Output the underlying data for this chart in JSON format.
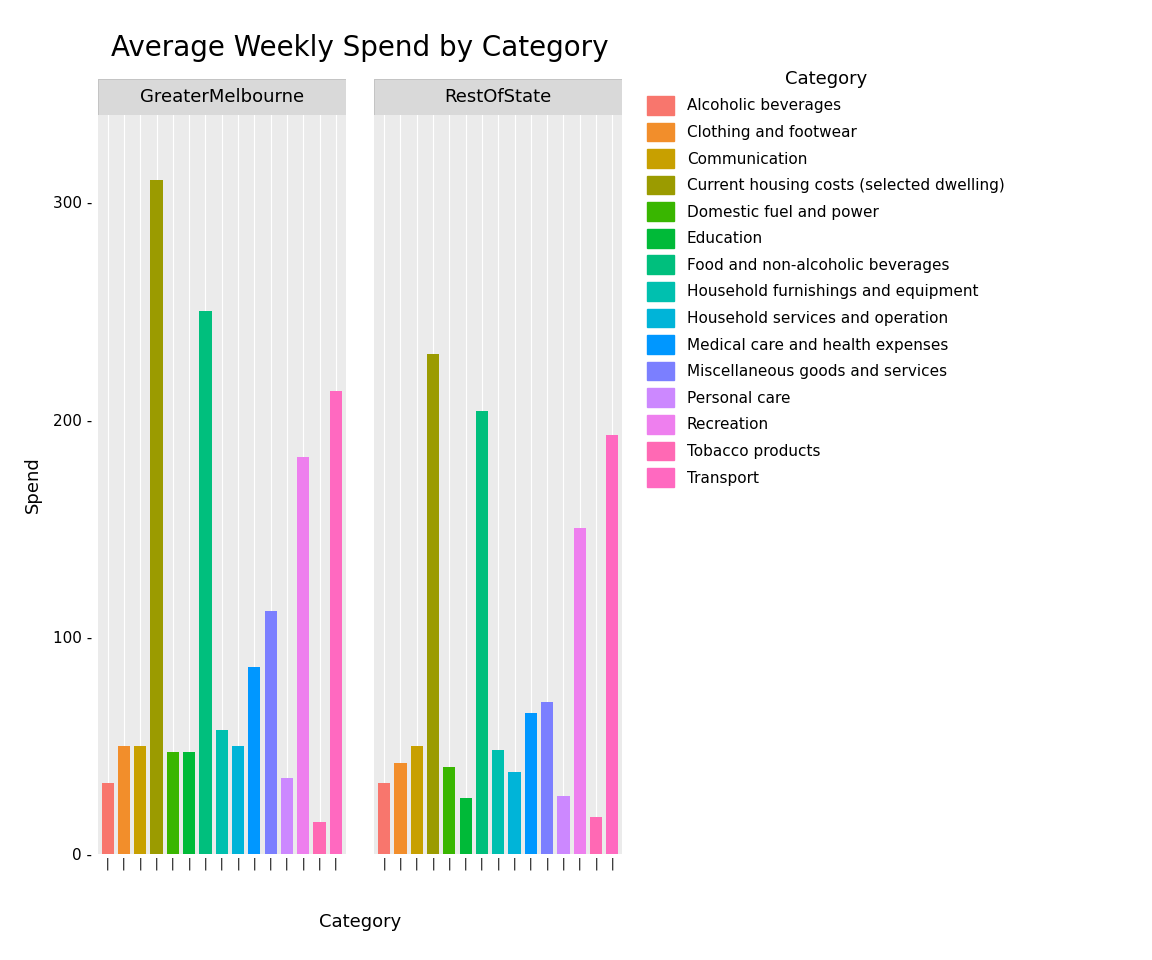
{
  "title": "Average Weekly Spend by Category",
  "xlabel": "Category",
  "ylabel": "Spend",
  "panels": [
    "GreaterMelbourne",
    "RestOfState"
  ],
  "categories": [
    "Alcoholic beverages",
    "Clothing and footwear",
    "Communication",
    "Current housing costs (selected dwelling)",
    "Domestic fuel and power",
    "Education",
    "Food and non-alcoholic beverages",
    "Household furnishings and equipment",
    "Household services and operation",
    "Medical care and health expenses",
    "Miscellaneous goods and services",
    "Personal care",
    "Recreation",
    "Tobacco products",
    "Transport"
  ],
  "bar_colors": [
    "#F8766D",
    "#F28E2B",
    "#C8A000",
    "#9B9B00",
    "#39B600",
    "#00BA38",
    "#00BF7D",
    "#00C0AF",
    "#00B4D8",
    "#0097FF",
    "#7B7FFF",
    "#CC88FF",
    "#EE7FEE",
    "#FF69B4",
    "#FF69C0"
  ],
  "values_GreaterMelbourne": [
    33,
    50,
    50,
    310,
    47,
    47,
    250,
    57,
    50,
    86,
    112,
    35,
    183,
    15,
    213
  ],
  "values_RestOfState": [
    33,
    42,
    50,
    230,
    40,
    26,
    204,
    48,
    38,
    65,
    70,
    27,
    150,
    17,
    193
  ],
  "ylim": [
    0,
    340
  ],
  "yticks": [
    0,
    100,
    200,
    300
  ],
  "panel_bg": "#EBEBEB",
  "facet_bg": "#D9D9D9",
  "grid_color": "#FFFFFF",
  "background_color": "#FFFFFF",
  "title_fontsize": 20,
  "axis_fontsize": 13,
  "tick_fontsize": 11,
  "legend_title_fontsize": 13,
  "legend_fontsize": 11
}
